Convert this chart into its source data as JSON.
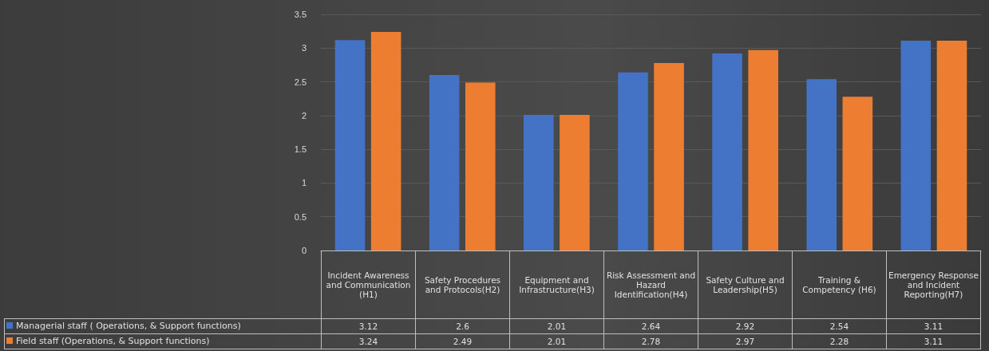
{
  "chart_data": {
    "type": "bar",
    "categories": [
      "Incident Awareness and Communication (H1)",
      "Safety Procedures and Protocols(H2)",
      "Equipment and Infrastructure(H3)",
      "Risk Assessment and Hazard Identification(H4)",
      "Safety Culture and Leadership(H5)",
      "Training & Competency (H6)",
      "Emergency Response and Incident Reporting(H7)"
    ],
    "series": [
      {
        "name": "Managerial staff  ( Operations, & Support functions)",
        "color": "#4472c4",
        "values": [
          3.12,
          2.6,
          2.01,
          2.64,
          2.92,
          2.54,
          3.11
        ]
      },
      {
        "name": "Field staff  (Operations, & Support functions)",
        "color": "#ed7d31",
        "values": [
          3.24,
          2.49,
          2.01,
          2.78,
          2.97,
          2.28,
          3.11
        ]
      }
    ],
    "ylim": [
      0,
      3.5
    ],
    "yticks": [
      0,
      0.5,
      1,
      1.5,
      2,
      2.5,
      3,
      3.5
    ],
    "grid": "y",
    "data_labels": true,
    "legend": "bottom"
  }
}
